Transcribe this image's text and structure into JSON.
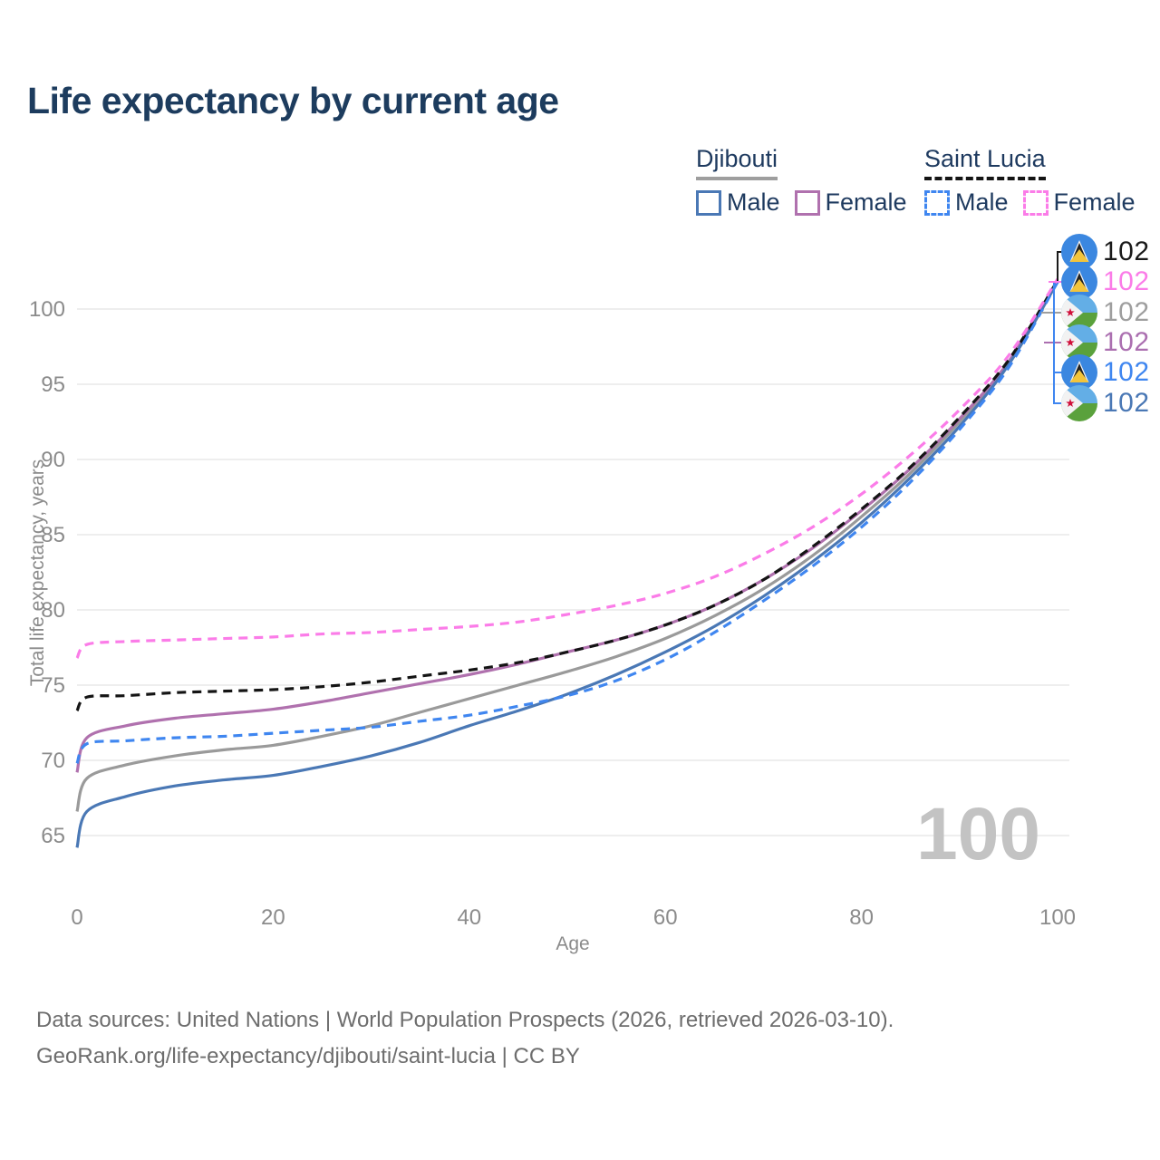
{
  "title": "Life expectancy by current age",
  "legend": {
    "groups": [
      {
        "label": "Djibouti",
        "line_style": "solid",
        "underline_color": "#9e9e9e",
        "items": [
          {
            "label": "Male",
            "color": "#4a78b5"
          },
          {
            "label": "Female",
            "color": "#b071ae"
          }
        ]
      },
      {
        "label": "Saint Lucia",
        "line_style": "dashed",
        "underline_color": "#141414",
        "items": [
          {
            "label": "Male",
            "color": "#3f86f0"
          },
          {
            "label": "Female",
            "color": "#fb7ce8"
          }
        ]
      }
    ]
  },
  "chart_data": {
    "type": "line",
    "title": "Life expectancy by current age",
    "xlabel": "Age",
    "ylabel": "Total life expectancy, years",
    "xlim": [
      0,
      100
    ],
    "ylim": [
      63,
      103
    ],
    "x_ticks": [
      0,
      20,
      40,
      60,
      80,
      100
    ],
    "y_ticks": [
      65,
      70,
      75,
      80,
      85,
      90,
      95,
      100
    ],
    "grid": "horizontal",
    "legend_position": "top-right",
    "age_indicator": "100",
    "x": [
      0,
      1,
      5,
      10,
      15,
      20,
      25,
      30,
      35,
      40,
      45,
      50,
      55,
      60,
      65,
      70,
      75,
      80,
      85,
      90,
      95,
      100
    ],
    "series": [
      {
        "name": "Djibouti",
        "country": "Djibouti",
        "sex": "Both",
        "color": "#9a9a9a",
        "dash": "solid",
        "end_label": "102",
        "values": [
          66.6,
          68.8,
          69.7,
          70.3,
          70.7,
          71.0,
          71.6,
          72.3,
          73.2,
          74.1,
          75.0,
          75.9,
          76.9,
          78.1,
          79.6,
          81.4,
          83.6,
          86.2,
          89.1,
          92.5,
          96.4,
          101.8
        ]
      },
      {
        "name": "Djibouti Female",
        "country": "Djibouti",
        "sex": "Female",
        "color": "#b071ae",
        "dash": "solid",
        "end_label": "102",
        "values": [
          69.2,
          71.5,
          72.3,
          72.8,
          73.1,
          73.4,
          73.9,
          74.5,
          75.1,
          75.7,
          76.4,
          77.2,
          78.0,
          79.0,
          80.3,
          82.0,
          84.1,
          86.6,
          89.4,
          92.7,
          96.5,
          101.9
        ]
      },
      {
        "name": "Djibouti Male",
        "country": "Djibouti",
        "sex": "Male",
        "color": "#4a78b5",
        "dash": "solid",
        "end_label": "102",
        "values": [
          64.2,
          66.6,
          67.6,
          68.3,
          68.7,
          69.0,
          69.6,
          70.3,
          71.2,
          72.3,
          73.3,
          74.4,
          75.7,
          77.2,
          78.9,
          80.9,
          83.2,
          85.8,
          88.8,
          92.2,
          96.3,
          101.8
        ]
      },
      {
        "name": "Saint Lucia",
        "country": "Saint Lucia",
        "sex": "Both",
        "color": "#141414",
        "dash": "dashed",
        "end_label": "102",
        "values": [
          73.3,
          74.2,
          74.3,
          74.5,
          74.6,
          74.7,
          74.9,
          75.2,
          75.6,
          76.0,
          76.5,
          77.2,
          78.0,
          79.0,
          80.3,
          82.0,
          84.2,
          86.7,
          89.5,
          92.8,
          96.6,
          101.9
        ]
      },
      {
        "name": "Saint Lucia Male",
        "country": "Saint Lucia",
        "sex": "Male",
        "color": "#3f86f0",
        "dash": "dashed",
        "end_label": "102",
        "values": [
          69.8,
          71.1,
          71.3,
          71.5,
          71.6,
          71.8,
          72.0,
          72.2,
          72.6,
          73.0,
          73.6,
          74.3,
          75.3,
          76.7,
          78.5,
          80.6,
          82.9,
          85.5,
          88.5,
          92.0,
          96.1,
          101.8
        ]
      },
      {
        "name": "Saint Lucia Female",
        "country": "Saint Lucia",
        "sex": "Female",
        "color": "#fb7ce8",
        "dash": "dashed",
        "end_label": "102",
        "values": [
          76.8,
          77.7,
          77.9,
          78.0,
          78.1,
          78.2,
          78.4,
          78.5,
          78.7,
          78.9,
          79.2,
          79.7,
          80.3,
          81.1,
          82.2,
          83.7,
          85.5,
          87.7,
          90.3,
          93.3,
          96.9,
          102.0
        ]
      }
    ]
  },
  "end_labels": [
    {
      "flag": "saint-lucia",
      "series": "Saint Lucia",
      "value": "102",
      "color": "#1a1a1a",
      "y": 278
    },
    {
      "flag": "saint-lucia",
      "series": "Saint Lucia Female",
      "value": "102",
      "color": "#fb7ce8",
      "y": 311
    },
    {
      "flag": "djibouti",
      "series": "Djibouti",
      "value": "102",
      "color": "#9e9e9e",
      "y": 345
    },
    {
      "flag": "djibouti",
      "series": "Djibouti Female",
      "value": "102",
      "color": "#ab6fb0",
      "y": 378
    },
    {
      "flag": "saint-lucia",
      "series": "Saint Lucia Male",
      "value": "102",
      "color": "#3f86f0",
      "y": 411
    },
    {
      "flag": "djibouti",
      "series": "Djibouti Male",
      "value": "102",
      "color": "#4a78b5",
      "y": 445
    }
  ],
  "footer": {
    "line1": "Data sources: United Nations | World Population Prospects (2026, retrieved 2026-03-10).",
    "line2": "GeoRank.org/life-expectancy/djibouti/saint-lucia | CC BY"
  }
}
